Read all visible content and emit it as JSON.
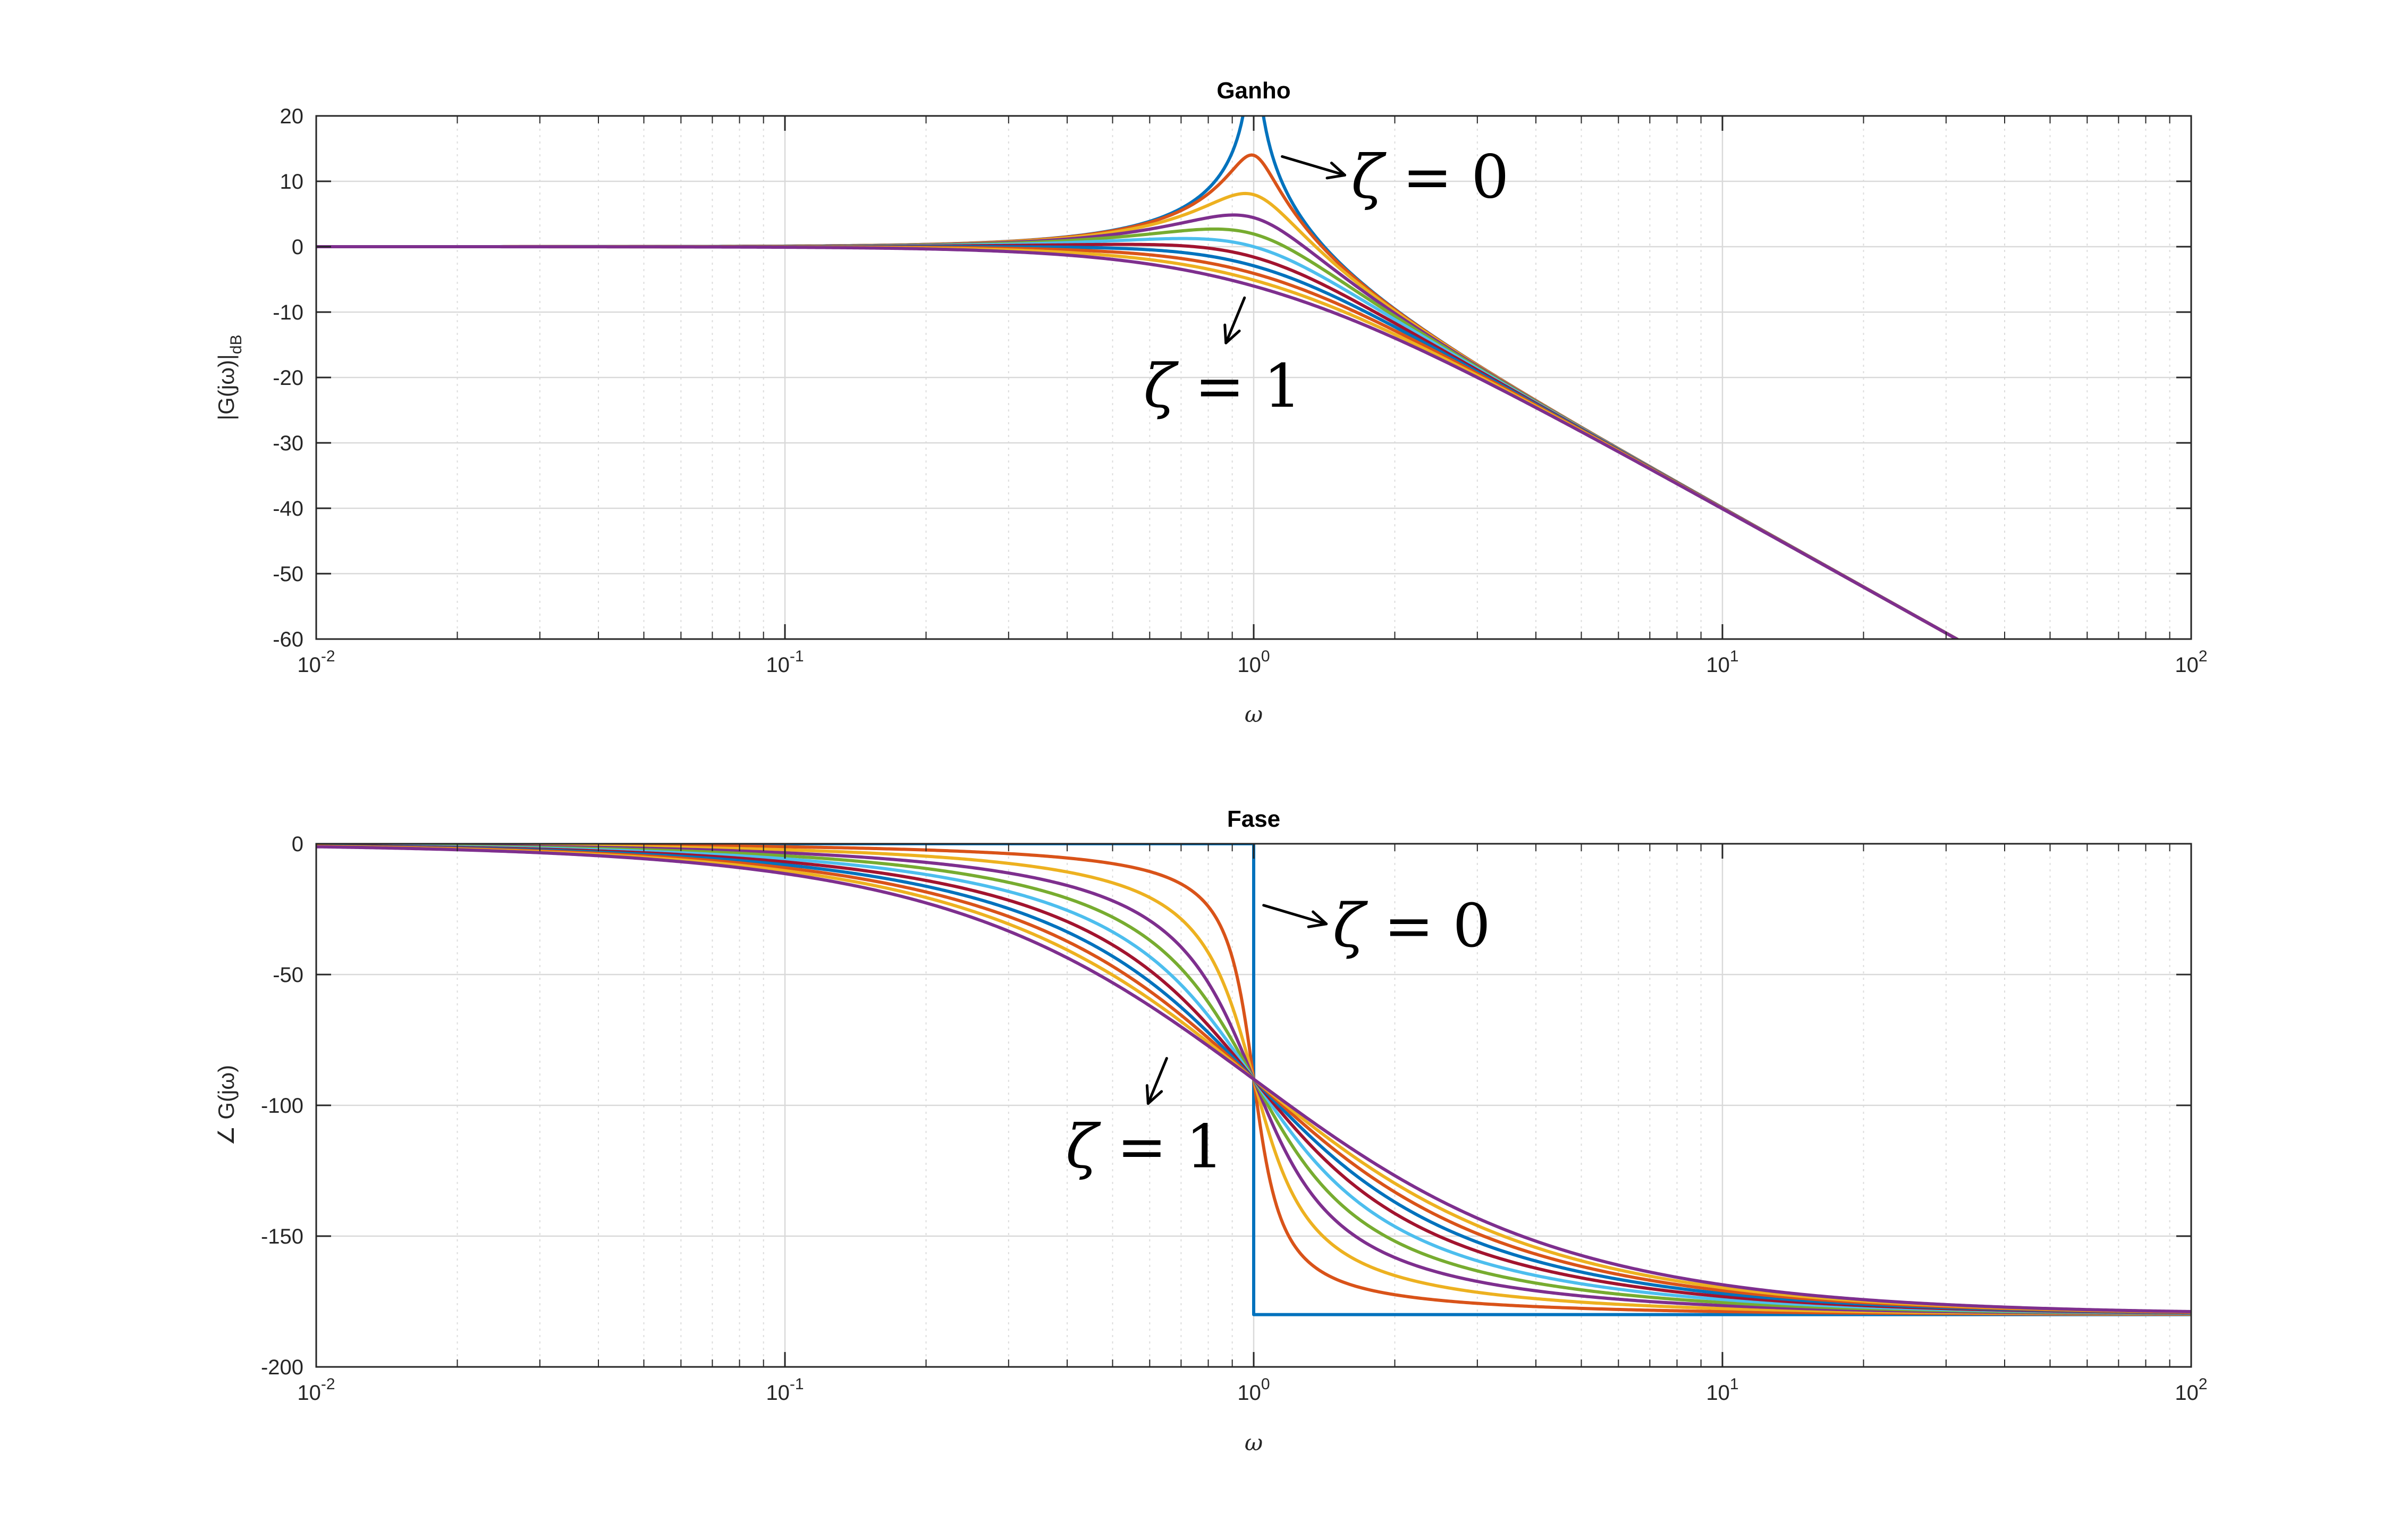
{
  "figure": {
    "background": "#ffffff",
    "series_colors": [
      "#0072BD",
      "#D95319",
      "#EDB120",
      "#7E2F8E",
      "#77AC30",
      "#4DBEEE",
      "#A2142F",
      "#0072BD",
      "#D95319",
      "#EDB120",
      "#7E2F8E"
    ]
  },
  "chart_data": [
    {
      "type": "line",
      "id": "gain",
      "title": "Ganho",
      "xlabel": "ω",
      "ylabel_main": "|G(jω)|",
      "ylabel_sub": "dB",
      "xscale": "log",
      "xlim": [
        0.01,
        100
      ],
      "ylim": [
        -60,
        20
      ],
      "xticks": [
        0.01,
        0.1,
        1,
        10,
        100
      ],
      "xtick_labels": [
        {
          "base": "10",
          "exp": "-2"
        },
        {
          "base": "10",
          "exp": "-1"
        },
        {
          "base": "10",
          "exp": "0"
        },
        {
          "base": "10",
          "exp": "1"
        },
        {
          "base": "10",
          "exp": "2"
        }
      ],
      "yticks": [
        20,
        10,
        0,
        -10,
        -20,
        -30,
        -40,
        -50,
        -60
      ],
      "ytick_labels": [
        "20",
        "10",
        "0",
        "-10",
        "-20",
        "-30",
        "-40",
        "-50",
        "-60"
      ],
      "grid": true,
      "minor_grid": true,
      "function": "20*log10(1/sqrt((1-w^2)^2+(2*zeta*w)^2))",
      "series": [
        {
          "zeta": 0.0
        },
        {
          "zeta": 0.1
        },
        {
          "zeta": 0.2
        },
        {
          "zeta": 0.3
        },
        {
          "zeta": 0.4
        },
        {
          "zeta": 0.5
        },
        {
          "zeta": 0.6
        },
        {
          "zeta": 0.7
        },
        {
          "zeta": 0.8
        },
        {
          "zeta": 0.9
        },
        {
          "zeta": 1.0
        }
      ],
      "annotations": [
        {
          "symbol": "ζ",
          "text": " = 0",
          "points_to": {
            "x": 1.15,
            "y": 12
          }
        },
        {
          "symbol": "ζ",
          "text": " = 1",
          "points_to": {
            "x": 0.85,
            "y": -7
          }
        }
      ]
    },
    {
      "type": "line",
      "id": "phase",
      "title": "Fase",
      "xlabel": "ω",
      "ylabel": "∠ G(jω)",
      "xscale": "log",
      "xlim": [
        0.01,
        100
      ],
      "ylim": [
        -200,
        0
      ],
      "xticks": [
        0.01,
        0.1,
        1,
        10,
        100
      ],
      "xtick_labels": [
        {
          "base": "10",
          "exp": "-2"
        },
        {
          "base": "10",
          "exp": "-1"
        },
        {
          "base": "10",
          "exp": "0"
        },
        {
          "base": "10",
          "exp": "1"
        },
        {
          "base": "10",
          "exp": "2"
        }
      ],
      "yticks": [
        0,
        -50,
        -100,
        -150,
        -200
      ],
      "ytick_labels": [
        "0",
        "-50",
        "-100",
        "-150",
        "-200"
      ],
      "grid": true,
      "minor_grid": true,
      "function": "-atan2(2*zeta*w, 1-w^2) in degrees",
      "series": [
        {
          "zeta": 0.0
        },
        {
          "zeta": 0.1
        },
        {
          "zeta": 0.2
        },
        {
          "zeta": 0.3
        },
        {
          "zeta": 0.4
        },
        {
          "zeta": 0.5
        },
        {
          "zeta": 0.6
        },
        {
          "zeta": 0.7
        },
        {
          "zeta": 0.8
        },
        {
          "zeta": 0.9
        },
        {
          "zeta": 1.0
        }
      ],
      "annotations": [
        {
          "symbol": "ζ",
          "text": " = 0",
          "points_to": {
            "x": 1.05,
            "y": -28
          }
        },
        {
          "symbol": "ζ",
          "text": " = 1",
          "points_to": {
            "x": 0.58,
            "y": -80
          }
        }
      ]
    }
  ]
}
